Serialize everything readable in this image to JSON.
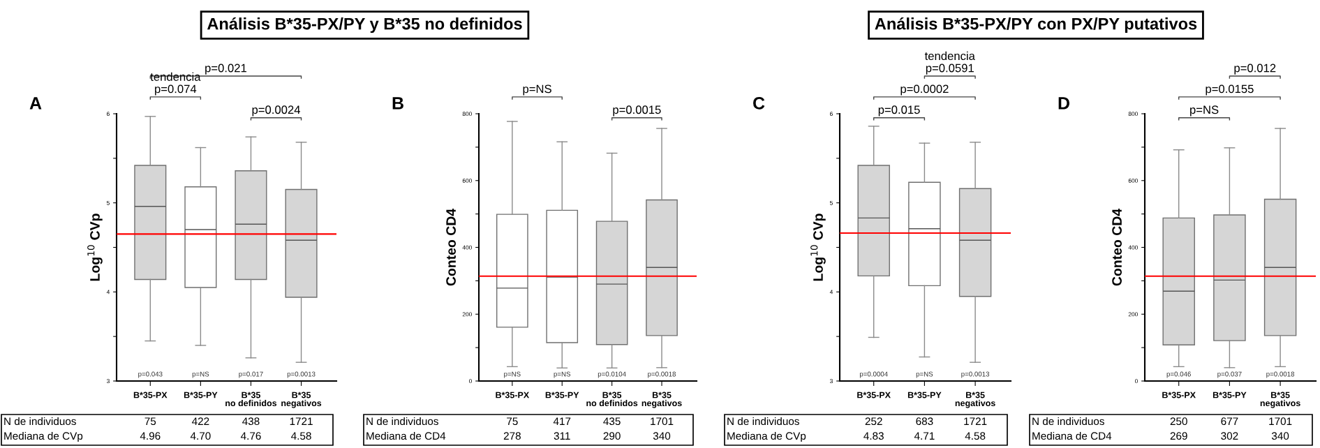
{
  "chart_data": [
    {
      "type": "box",
      "title": "Análisis B*35-PX/PY y B*35 no definidos",
      "subtitle": "A",
      "ylabel": "Log$^{10}$ CVp",
      "categories": [
        "B*35-PX",
        "B*35-PY",
        "B*35\nno definidos",
        "B*35\nnegativos"
      ],
      "boxes": [
        {
          "low": 3.45,
          "q1": 4.14,
          "median": 4.96,
          "q3": 5.42,
          "high": 5.97
        },
        {
          "low": 3.4,
          "q1": 4.05,
          "median": 4.7,
          "q3": 5.18,
          "high": 5.62
        },
        {
          "low": 3.26,
          "q1": 4.14,
          "median": 4.76,
          "q3": 5.36,
          "high": 5.74
        },
        {
          "low": 3.21,
          "q1": 3.94,
          "median": 4.58,
          "q3": 5.15,
          "high": 5.68
        }
      ],
      "colors": [
        "#d6d6d6",
        "#ffffff",
        "#d6d6d6",
        "#d6d6d6"
      ],
      "ylim": [
        3,
        6
      ],
      "yticks": [
        3,
        {
          "value": 3.5,
          "label": null
        },
        4,
        {
          "value": 4.5,
          "label": null
        },
        5,
        {
          "value": 5.5,
          "label": null
        },
        6
      ],
      "ref_lines": [
        {
          "axis": "y",
          "value": 4.65,
          "color": "#ff0000"
        }
      ],
      "annotations": [
        "p=0.043",
        "p=NS",
        "p=0.017",
        "p=0.0013",
        "p=0.021",
        "tendencia\np=0.074",
        "p=0.0024",
        "N de individuos",
        "75",
        "422",
        "438",
        "1721",
        "Mediana de CVp",
        "4.96",
        "4.70",
        "4.76",
        "4.58"
      ]
    },
    {
      "type": "box",
      "subtitle": "B",
      "ylabel": "Conteo CD4",
      "categories": [
        "B*35-PX",
        "B*35-PY",
        "B*35\nno definidos",
        "B*35\nnegativos"
      ],
      "boxes": [
        {
          "low": 43,
          "q1": 161,
          "median": 278,
          "q3": 499,
          "high": 777
        },
        {
          "low": 39,
          "q1": 115,
          "median": 311,
          "q3": 511,
          "high": 716
        },
        {
          "low": 39,
          "q1": 109,
          "median": 290,
          "q3": 478,
          "high": 682
        },
        {
          "low": 40,
          "q1": 136,
          "median": 340,
          "q3": 542,
          "high": 756
        }
      ],
      "colors": [
        "#ffffff",
        "#ffffff",
        "#d6d6d6",
        "#d6d6d6"
      ],
      "ylim": [
        0,
        800
      ],
      "yticks": [
        0,
        {
          "value": 100,
          "label": null
        },
        200,
        {
          "value": 300,
          "label": null
        },
        400,
        {
          "value": 500,
          "label": null
        },
        600,
        {
          "value": 700,
          "label": null
        },
        800
      ],
      "ref_lines": [
        {
          "axis": "y",
          "value": 314,
          "color": "#ff0000"
        }
      ],
      "annotations": [
        "p=NS",
        "p=NS",
        "p=0.0104",
        "p=0.0018",
        "p=NS",
        "p=0.0015",
        "N de individuos",
        "75",
        "417",
        "435",
        "1701",
        "Mediana de CD4",
        "278",
        "311",
        "290",
        "340"
      ]
    },
    {
      "type": "box",
      "title": "Análisis B*35-PX/PY con PX/PY putativos",
      "subtitle": "C",
      "ylabel": "Log$^{10}$ CVp",
      "categories": [
        "B*35-PX",
        "B*35-PY",
        "B*35\nnegativos"
      ],
      "boxes": [
        {
          "low": 3.49,
          "q1": 4.18,
          "median": 4.83,
          "q3": 5.42,
          "high": 5.86
        },
        {
          "low": 3.27,
          "q1": 4.07,
          "median": 4.71,
          "q3": 5.23,
          "high": 5.67
        },
        {
          "low": 3.21,
          "q1": 3.95,
          "median": 4.58,
          "q3": 5.16,
          "high": 5.68
        }
      ],
      "colors": [
        "#d6d6d6",
        "#ffffff",
        "#d6d6d6"
      ],
      "ylim": [
        3,
        6
      ],
      "yticks": [
        3,
        {
          "value": 3.5,
          "label": null
        },
        4,
        {
          "value": 4.5,
          "label": null
        },
        5,
        {
          "value": 5.5,
          "label": null
        },
        6
      ],
      "ref_lines": [
        {
          "axis": "y",
          "value": 4.66,
          "color": "#ff0000"
        }
      ],
      "annotations": [
        "p=0.0004",
        "p=NS",
        "p=0.0013",
        "tendencia\np=0.0591",
        "p=0.0002",
        "p=0.015",
        "N de individuos",
        "252",
        "683",
        "1721",
        "Mediana de CVp",
        "4.83",
        "4.71",
        "4.58"
      ]
    },
    {
      "type": "box",
      "subtitle": "D",
      "ylabel": "Conteo CD4",
      "categories": [
        "B*35-PX",
        "B*35-PY",
        "B*35\nnegativos"
      ],
      "boxes": [
        {
          "low": 43,
          "q1": 108,
          "median": 269,
          "q3": 488,
          "high": 692
        },
        {
          "low": 40,
          "q1": 121,
          "median": 302,
          "q3": 497,
          "high": 698
        },
        {
          "low": 43,
          "q1": 136,
          "median": 340,
          "q3": 544,
          "high": 756
        }
      ],
      "colors": [
        "#d6d6d6",
        "#d6d6d6",
        "#d6d6d6"
      ],
      "ylim": [
        0,
        800
      ],
      "yticks": [
        0,
        {
          "value": 100,
          "label": null
        },
        200,
        {
          "value": 300,
          "label": null
        },
        400,
        {
          "value": 500,
          "label": null
        },
        600,
        {
          "value": 700,
          "label": null
        },
        800
      ],
      "ref_lines": [
        {
          "axis": "y",
          "value": 314,
          "color": "#ff0000"
        }
      ],
      "annotations": [
        "p=0.046",
        "p=0.037",
        "p=0.0018",
        "p=0.012",
        "p=0.0155",
        "p=NS",
        "N de individuos",
        "250",
        "677",
        "1701",
        "Mediana de CD4",
        "269",
        "302",
        "340"
      ]
    }
  ]
}
